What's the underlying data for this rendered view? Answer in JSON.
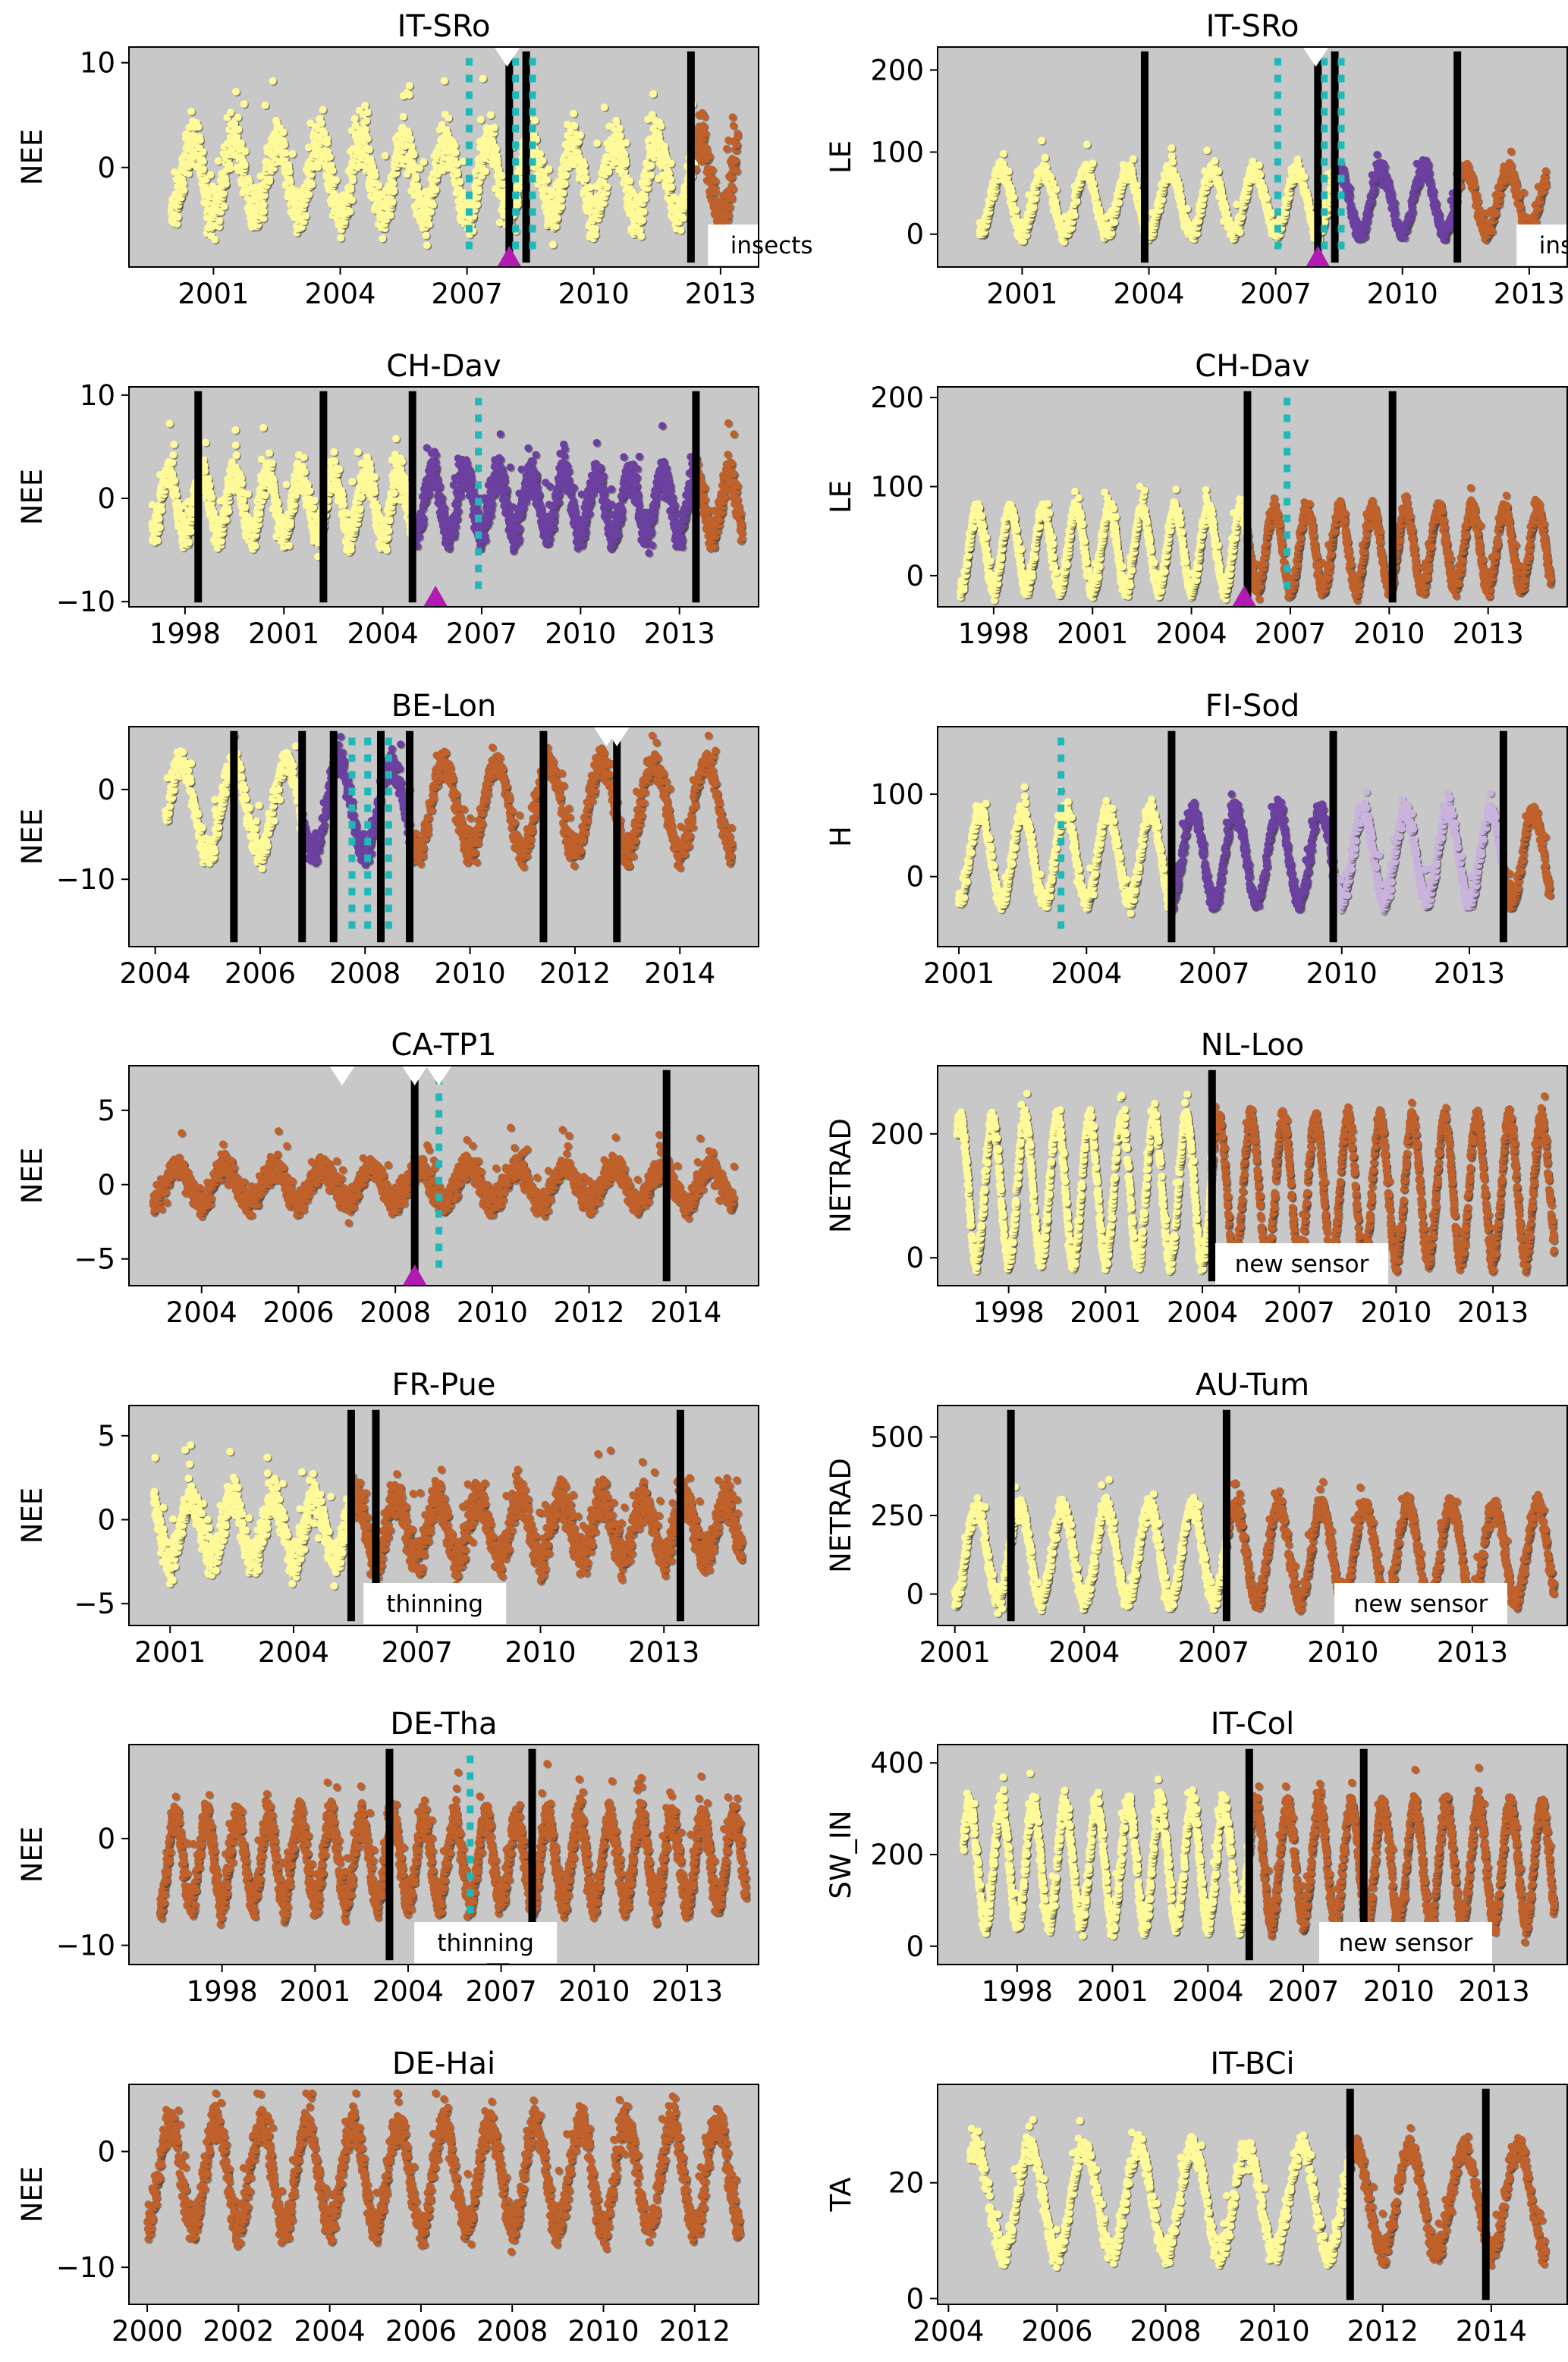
{
  "figure": {
    "background": "#ffffff",
    "plot_bg": "#c8c8c8"
  },
  "palette": {
    "seg1": "#fffa99",
    "seg2": "#6b40a0",
    "seg3": "#c9b3dd",
    "seg_last": "#c0602a",
    "breakpoint": "#000000",
    "dotted": "#20b8b8",
    "marker_bottom": "#b21bb2",
    "marker_top": "#ffffff"
  },
  "chart_data": [
    {
      "type": "scatter",
      "title": "IT-SRo",
      "ylabel": "NEE",
      "xlim": [
        1999.0,
        2013.9
      ],
      "ylim": [
        -9.5,
        11.5
      ],
      "xticks": [
        2001,
        2004,
        2007,
        2010,
        2013
      ],
      "yticks": [
        0,
        10
      ],
      "wave": {
        "mean": -1,
        "amp": 3.5,
        "noise": 4,
        "first": 2000.0,
        "last": 2013.4
      },
      "segments": [
        {
          "start": 2000.0,
          "end": 2012.4,
          "color": "seg1"
        },
        {
          "start": 2012.4,
          "end": 2013.4,
          "color": "seg_last"
        }
      ],
      "breakpoints": [
        2008.0,
        2008.4,
        2012.3
      ],
      "dotted_lines": [
        2007.05,
        2008.15,
        2008.55
      ],
      "markers_top": [
        2007.95
      ],
      "markers_bottom": [
        2008.0
      ],
      "annotation": {
        "text": "insects",
        "x": 2012.7
      }
    },
    {
      "type": "scatter",
      "title": "IT-SRo",
      "ylabel": "LE",
      "xlim": [
        1999.0,
        2013.9
      ],
      "ylim": [
        -40,
        228
      ],
      "xticks": [
        2001,
        2004,
        2007,
        2010,
        2013
      ],
      "yticks": [
        0,
        100,
        200
      ],
      "wave": {
        "mean": 40,
        "amp": 38,
        "noise": 20,
        "first": 2000.0,
        "last": 2013.4
      },
      "segments": [
        {
          "start": 2000.0,
          "end": 2008.4,
          "color": "seg1"
        },
        {
          "start": 2008.4,
          "end": 2011.3,
          "color": "seg2"
        },
        {
          "start": 2011.3,
          "end": 2013.4,
          "color": "seg_last"
        }
      ],
      "breakpoints": [
        2003.9,
        2008.0,
        2008.4,
        2011.3
      ],
      "dotted_lines": [
        2007.05,
        2008.15,
        2008.55
      ],
      "markers_top": [
        2007.95
      ],
      "markers_bottom": [
        2008.0
      ],
      "annotation": {
        "text": "insects",
        "x": 2012.7
      }
    },
    {
      "type": "scatter",
      "title": "CH-Dav",
      "ylabel": "NEE",
      "xlim": [
        1996.3,
        2015.4
      ],
      "ylim": [
        -10.5,
        10.8
      ],
      "xticks": [
        1998,
        2001,
        2004,
        2007,
        2010,
        2013
      ],
      "yticks": [
        -10,
        0,
        10
      ],
      "wave": {
        "mean": -0.5,
        "amp": 3,
        "noise": 3,
        "first": 1997.0,
        "last": 2014.9
      },
      "segments": [
        {
          "start": 1997.0,
          "end": 2004.9,
          "color": "seg1"
        },
        {
          "start": 2004.9,
          "end": 2013.5,
          "color": "seg2"
        },
        {
          "start": 2013.5,
          "end": 2014.9,
          "color": "seg_last"
        }
      ],
      "breakpoints": [
        1998.4,
        2002.2,
        2004.9,
        2013.5
      ],
      "dotted_lines": [
        2006.9
      ],
      "markers_top": [],
      "markers_bottom": [
        2005.6
      ],
      "annotation": null
    },
    {
      "type": "scatter",
      "title": "CH-Dav",
      "ylabel": "LE",
      "xlim": [
        1996.3,
        2015.4
      ],
      "ylim": [
        -35,
        212
      ],
      "xticks": [
        1998,
        2001,
        2004,
        2007,
        2010,
        2013
      ],
      "yticks": [
        0,
        100,
        200
      ],
      "wave": {
        "mean": 30,
        "amp": 45,
        "noise": 18,
        "first": 1997.0,
        "last": 2014.9
      },
      "segments": [
        {
          "start": 1997.0,
          "end": 2005.7,
          "color": "seg1"
        },
        {
          "start": 2005.7,
          "end": 2014.9,
          "color": "seg_last"
        }
      ],
      "breakpoints": [
        2005.7,
        2010.1
      ],
      "dotted_lines": [
        2006.9
      ],
      "markers_top": [],
      "markers_bottom": [
        2005.6
      ],
      "annotation": null
    },
    {
      "type": "scatter",
      "title": "BE-Lon",
      "ylabel": "NEE",
      "xlim": [
        2003.5,
        2015.5
      ],
      "ylim": [
        -17.5,
        7.0
      ],
      "xticks": [
        2004,
        2006,
        2008,
        2010,
        2012,
        2014
      ],
      "yticks": [
        -10,
        0
      ],
      "wave": {
        "mean": -2,
        "amp": 5,
        "noise": 3,
        "first": 2004.2,
        "last": 2015.0
      },
      "segments": [
        {
          "start": 2004.2,
          "end": 2006.8,
          "color": "seg1"
        },
        {
          "start": 2006.8,
          "end": 2008.85,
          "color": "seg2"
        },
        {
          "start": 2008.85,
          "end": 2015.0,
          "color": "seg_last"
        }
      ],
      "breakpoints": [
        2005.5,
        2006.8,
        2007.4,
        2008.3,
        2008.85,
        2011.4,
        2012.8
      ],
      "dotted_lines": [
        2007.75,
        2008.05,
        2008.45
      ],
      "markers_top": [
        2012.6,
        2012.8
      ],
      "markers_bottom": [],
      "annotation": null
    },
    {
      "type": "scatter",
      "title": "FI-Sod",
      "ylabel": "H",
      "xlim": [
        2000.5,
        2015.3
      ],
      "ylim": [
        -85,
        182
      ],
      "xticks": [
        2001,
        2004,
        2007,
        2010,
        2013
      ],
      "yticks": [
        0,
        100
      ],
      "wave": {
        "mean": 25,
        "amp": 55,
        "noise": 22,
        "first": 2001.0,
        "last": 2014.9
      },
      "segments": [
        {
          "start": 2001.0,
          "end": 2006.0,
          "color": "seg1"
        },
        {
          "start": 2006.0,
          "end": 2009.8,
          "color": "seg2"
        },
        {
          "start": 2009.8,
          "end": 2013.8,
          "color": "seg3"
        },
        {
          "start": 2013.8,
          "end": 2014.9,
          "color": "seg_last"
        }
      ],
      "breakpoints": [
        2006.0,
        2009.8,
        2013.8
      ],
      "dotted_lines": [
        2003.4
      ],
      "markers_top": [],
      "markers_bottom": [],
      "annotation": null
    },
    {
      "type": "scatter",
      "title": "CA-TP1",
      "ylabel": "NEE",
      "xlim": [
        2002.5,
        2015.5
      ],
      "ylim": [
        -6.8,
        8.0
      ],
      "xticks": [
        2004,
        2006,
        2008,
        2010,
        2012,
        2014
      ],
      "yticks": [
        -5,
        0,
        5
      ],
      "wave": {
        "mean": 0,
        "amp": 1.2,
        "noise": 1.6,
        "first": 2003.0,
        "last": 2015.0
      },
      "segments": [
        {
          "start": 2003.0,
          "end": 2015.0,
          "color": "seg_last"
        }
      ],
      "breakpoints": [
        2008.4,
        2013.6
      ],
      "dotted_lines": [
        2008.9
      ],
      "markers_top": [
        2006.9,
        2008.4,
        2008.9
      ],
      "markers_bottom": [
        2008.4
      ],
      "annotation": null
    },
    {
      "type": "scatter",
      "title": "NL-Loo",
      "ylabel": "NETRAD",
      "xlim": [
        1995.8,
        2015.3
      ],
      "ylim": [
        -45,
        310
      ],
      "xticks": [
        1998,
        2001,
        2004,
        2007,
        2010,
        2013
      ],
      "yticks": [
        0,
        200
      ],
      "wave": {
        "mean": 110,
        "amp": 115,
        "noise": 30,
        "first": 1996.4,
        "last": 2014.9
      },
      "segments": [
        {
          "start": 1996.4,
          "end": 2004.3,
          "color": "seg1"
        },
        {
          "start": 2004.3,
          "end": 2014.9,
          "color": "seg_last"
        }
      ],
      "breakpoints": [
        2004.3
      ],
      "dotted_lines": [],
      "markers_top": [],
      "markers_bottom": [],
      "annotation": {
        "text": "new sensor",
        "x": 2004.4
      }
    },
    {
      "type": "scatter",
      "title": "FR-Pue",
      "ylabel": "NEE",
      "xlim": [
        2000.0,
        2015.3
      ],
      "ylim": [
        -6.3,
        6.8
      ],
      "xticks": [
        2001,
        2004,
        2007,
        2010,
        2013
      ],
      "yticks": [
        -5,
        0,
        5
      ],
      "wave": {
        "mean": -0.5,
        "amp": 1.8,
        "noise": 2.2,
        "first": 2000.6,
        "last": 2014.9
      },
      "segments": [
        {
          "start": 2000.6,
          "end": 2005.4,
          "color": "seg1"
        },
        {
          "start": 2005.4,
          "end": 2014.9,
          "color": "seg_last"
        }
      ],
      "breakpoints": [
        2005.4,
        2006.0,
        2013.4
      ],
      "dotted_lines": [],
      "markers_top": [],
      "markers_bottom": [],
      "annotation": {
        "text": "thinning",
        "x": 2005.7
      }
    },
    {
      "type": "scatter",
      "title": "AU-Tum",
      "ylabel": "NETRAD",
      "xlim": [
        2000.6,
        2015.2
      ],
      "ylim": [
        -100,
        600
      ],
      "xticks": [
        2001,
        2004,
        2007,
        2010,
        2013
      ],
      "yticks": [
        0,
        250,
        500
      ],
      "wave": {
        "mean": 130,
        "amp": 150,
        "noise": 60,
        "first": 2001.0,
        "last": 2014.9
      },
      "segments": [
        {
          "start": 2001.0,
          "end": 2007.3,
          "color": "seg1"
        },
        {
          "start": 2007.3,
          "end": 2014.9,
          "color": "seg_last"
        }
      ],
      "breakpoints": [
        2002.3,
        2007.3
      ],
      "dotted_lines": [],
      "markers_top": [],
      "markers_bottom": [],
      "annotation": {
        "text": "new sensor",
        "x": 2009.8
      }
    },
    {
      "type": "scatter",
      "title": "DE-Tha",
      "ylabel": "NEE",
      "xlim": [
        1995.0,
        2015.3
      ],
      "ylim": [
        -11.8,
        8.8
      ],
      "xticks": [
        1998,
        2001,
        2004,
        2007,
        2010,
        2013
      ],
      "yticks": [
        -10,
        0
      ],
      "wave": {
        "mean": -2,
        "amp": 4,
        "noise": 3,
        "first": 1996.0,
        "last": 2014.9
      },
      "segments": [
        {
          "start": 1996.0,
          "end": 2014.9,
          "color": "seg_last"
        }
      ],
      "breakpoints": [
        2003.4,
        2008.0
      ],
      "dotted_lines": [
        2006.0
      ],
      "markers_top": [],
      "markers_bottom": [
        2006.9
      ],
      "annotation": {
        "text": "thinning",
        "x": 2004.2
      }
    },
    {
      "type": "scatter",
      "title": "IT-Col",
      "ylabel": "SW_IN",
      "xlim": [
        1995.5,
        2015.3
      ],
      "ylim": [
        -40,
        440
      ],
      "xticks": [
        1998,
        2001,
        2004,
        2007,
        2010,
        2013
      ],
      "yticks": [
        0,
        200,
        400
      ],
      "wave": {
        "mean": 180,
        "amp": 130,
        "noise": 50,
        "first": 1996.3,
        "last": 2014.9
      },
      "segments": [
        {
          "start": 1996.3,
          "end": 2005.3,
          "color": "seg1"
        },
        {
          "start": 2005.3,
          "end": 2014.9,
          "color": "seg_last"
        }
      ],
      "breakpoints": [
        2005.3,
        2008.9
      ],
      "dotted_lines": [],
      "markers_top": [],
      "markers_bottom": [],
      "annotation": {
        "text": "new sensor",
        "x": 2007.5
      }
    },
    {
      "type": "scatter",
      "title": "DE-Hai",
      "ylabel": "NEE",
      "xlim": [
        1999.6,
        2013.4
      ],
      "ylim": [
        -13.2,
        5.8
      ],
      "xticks": [
        2000,
        2002,
        2004,
        2006,
        2008,
        2010,
        2012
      ],
      "yticks": [
        -10,
        0
      ],
      "wave": {
        "mean": -2,
        "amp": 4.5,
        "noise": 3,
        "first": 2000.0,
        "last": 2013.0
      },
      "segments": [
        {
          "start": 2000.0,
          "end": 2013.0,
          "color": "seg_last"
        }
      ],
      "breakpoints": [],
      "dotted_lines": [],
      "markers_top": [],
      "markers_bottom": [],
      "annotation": null
    },
    {
      "type": "scatter",
      "title": "IT-BCi",
      "ylabel": "TA",
      "xlim": [
        2003.8,
        2015.4
      ],
      "ylim": [
        -1,
        37
      ],
      "xticks": [
        2004,
        2006,
        2008,
        2010,
        2012,
        2014
      ],
      "yticks": [
        0,
        20
      ],
      "wave": {
        "mean": 17,
        "amp": 9,
        "noise": 4,
        "first": 2004.4,
        "last": 2015.0
      },
      "segments": [
        {
          "start": 2004.4,
          "end": 2011.4,
          "color": "seg1"
        },
        {
          "start": 2011.4,
          "end": 2015.0,
          "color": "seg_last"
        }
      ],
      "breakpoints": [
        2011.4,
        2013.9
      ],
      "dotted_lines": [],
      "markers_top": [],
      "markers_bottom": [],
      "annotation": null
    }
  ]
}
